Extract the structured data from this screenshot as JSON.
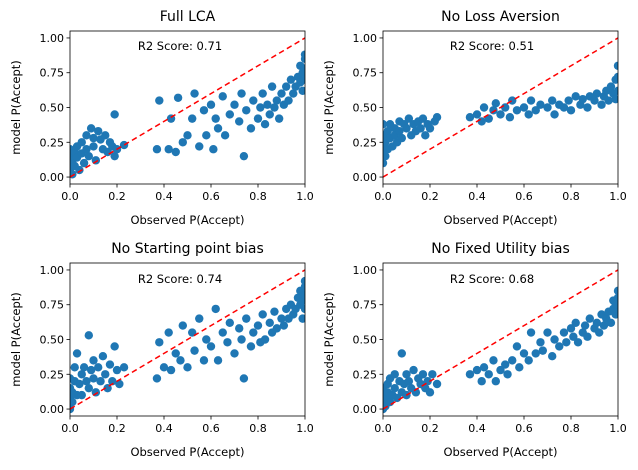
{
  "colors": {
    "points": "#1f77b4",
    "diagonal": "#ff0000",
    "axes": "#000000",
    "background": "#ffffff"
  },
  "chart_data": [
    {
      "type": "scatter",
      "title": "Full LCA",
      "annotation": "R2 Score: 0.71",
      "xlabel": "Observed P(Accept)",
      "ylabel": "model P(Accept)",
      "xlim": [
        0.0,
        1.0
      ],
      "ylim": [
        -0.05,
        1.05
      ],
      "xticks": [
        "0.0",
        "0.2",
        "0.4",
        "0.6",
        "0.8",
        "1.0"
      ],
      "yticks": [
        "0.00",
        "0.25",
        "0.50",
        "0.75",
        "1.00"
      ],
      "reference_line": {
        "style": "dashed",
        "color": "#ff0000",
        "from": [
          0,
          0
        ],
        "to": [
          1,
          1
        ]
      },
      "points": [
        [
          0.0,
          0.05
        ],
        [
          0.0,
          0.1
        ],
        [
          0.0,
          0.15
        ],
        [
          0.0,
          0.2
        ],
        [
          0.01,
          0.02
        ],
        [
          0.01,
          0.12
        ],
        [
          0.02,
          0.18
        ],
        [
          0.02,
          0.08
        ],
        [
          0.03,
          0.22
        ],
        [
          0.03,
          0.14
        ],
        [
          0.04,
          0.05
        ],
        [
          0.05,
          0.25
        ],
        [
          0.05,
          0.17
        ],
        [
          0.06,
          0.1
        ],
        [
          0.07,
          0.3
        ],
        [
          0.07,
          0.2
        ],
        [
          0.08,
          0.15
        ],
        [
          0.09,
          0.35
        ],
        [
          0.1,
          0.28
        ],
        [
          0.1,
          0.22
        ],
        [
          0.11,
          0.12
        ],
        [
          0.12,
          0.33
        ],
        [
          0.13,
          0.27
        ],
        [
          0.14,
          0.2
        ],
        [
          0.15,
          0.3
        ],
        [
          0.16,
          0.18
        ],
        [
          0.17,
          0.25
        ],
        [
          0.18,
          0.22
        ],
        [
          0.19,
          0.15
        ],
        [
          0.2,
          0.2
        ],
        [
          0.19,
          0.45
        ],
        [
          0.23,
          0.23
        ],
        [
          0.37,
          0.2
        ],
        [
          0.38,
          0.55
        ],
        [
          0.42,
          0.2
        ],
        [
          0.43,
          0.42
        ],
        [
          0.45,
          0.18
        ],
        [
          0.46,
          0.57
        ],
        [
          0.48,
          0.25
        ],
        [
          0.5,
          0.3
        ],
        [
          0.52,
          0.42
        ],
        [
          0.53,
          0.6
        ],
        [
          0.55,
          0.22
        ],
        [
          0.57,
          0.48
        ],
        [
          0.58,
          0.3
        ],
        [
          0.6,
          0.52
        ],
        [
          0.61,
          0.2
        ],
        [
          0.62,
          0.42
        ],
        [
          0.63,
          0.35
        ],
        [
          0.65,
          0.58
        ],
        [
          0.66,
          0.3
        ],
        [
          0.68,
          0.45
        ],
        [
          0.7,
          0.52
        ],
        [
          0.72,
          0.4
        ],
        [
          0.73,
          0.6
        ],
        [
          0.74,
          0.15
        ],
        [
          0.75,
          0.48
        ],
        [
          0.77,
          0.35
        ],
        [
          0.78,
          0.55
        ],
        [
          0.8,
          0.42
        ],
        [
          0.81,
          0.5
        ],
        [
          0.82,
          0.6
        ],
        [
          0.83,
          0.38
        ],
        [
          0.84,
          0.52
        ],
        [
          0.85,
          0.45
        ],
        [
          0.86,
          0.65
        ],
        [
          0.87,
          0.5
        ],
        [
          0.88,
          0.55
        ],
        [
          0.89,
          0.42
        ],
        [
          0.9,
          0.6
        ],
        [
          0.91,
          0.52
        ],
        [
          0.92,
          0.65
        ],
        [
          0.93,
          0.55
        ],
        [
          0.94,
          0.7
        ],
        [
          0.95,
          0.6
        ],
        [
          0.96,
          0.65
        ],
        [
          0.97,
          0.72
        ],
        [
          0.98,
          0.68
        ],
        [
          0.98,
          0.8
        ],
        [
          0.99,
          0.75
        ],
        [
          1.0,
          0.7
        ],
        [
          1.0,
          0.78
        ],
        [
          1.0,
          0.85
        ],
        [
          1.0,
          0.88
        ],
        [
          0.99,
          0.62
        ]
      ]
    },
    {
      "type": "scatter",
      "title": "No Loss Aversion",
      "annotation": "R2 Score: 0.51",
      "xlabel": "Observed P(Accept)",
      "ylabel": "model P(Accept)",
      "xlim": [
        0.0,
        1.0
      ],
      "ylim": [
        -0.05,
        1.05
      ],
      "xticks": [
        "0.0",
        "0.2",
        "0.4",
        "0.6",
        "0.8",
        "1.0"
      ],
      "yticks": [
        "0.00",
        "0.25",
        "0.50",
        "0.75",
        "1.00"
      ],
      "reference_line": {
        "style": "dashed",
        "color": "#ff0000",
        "from": [
          0,
          0
        ],
        "to": [
          1,
          1
        ]
      },
      "points": [
        [
          0.0,
          0.1
        ],
        [
          0.0,
          0.2
        ],
        [
          0.0,
          0.3
        ],
        [
          0.0,
          0.38
        ],
        [
          0.01,
          0.15
        ],
        [
          0.01,
          0.25
        ],
        [
          0.02,
          0.33
        ],
        [
          0.02,
          0.2
        ],
        [
          0.03,
          0.28
        ],
        [
          0.03,
          0.38
        ],
        [
          0.04,
          0.22
        ],
        [
          0.05,
          0.35
        ],
        [
          0.05,
          0.3
        ],
        [
          0.06,
          0.25
        ],
        [
          0.07,
          0.4
        ],
        [
          0.07,
          0.33
        ],
        [
          0.08,
          0.28
        ],
        [
          0.09,
          0.38
        ],
        [
          0.1,
          0.35
        ],
        [
          0.11,
          0.42
        ],
        [
          0.12,
          0.3
        ],
        [
          0.13,
          0.38
        ],
        [
          0.14,
          0.33
        ],
        [
          0.15,
          0.4
        ],
        [
          0.16,
          0.35
        ],
        [
          0.17,
          0.42
        ],
        [
          0.18,
          0.3
        ],
        [
          0.19,
          0.38
        ],
        [
          0.2,
          0.35
        ],
        [
          0.22,
          0.4
        ],
        [
          0.23,
          0.43
        ],
        [
          0.37,
          0.43
        ],
        [
          0.4,
          0.45
        ],
        [
          0.42,
          0.4
        ],
        [
          0.43,
          0.5
        ],
        [
          0.45,
          0.42
        ],
        [
          0.47,
          0.48
        ],
        [
          0.48,
          0.53
        ],
        [
          0.5,
          0.45
        ],
        [
          0.52,
          0.5
        ],
        [
          0.54,
          0.43
        ],
        [
          0.55,
          0.55
        ],
        [
          0.57,
          0.48
        ],
        [
          0.6,
          0.5
        ],
        [
          0.62,
          0.45
        ],
        [
          0.63,
          0.55
        ],
        [
          0.65,
          0.48
        ],
        [
          0.67,
          0.52
        ],
        [
          0.7,
          0.5
        ],
        [
          0.72,
          0.55
        ],
        [
          0.73,
          0.45
        ],
        [
          0.75,
          0.52
        ],
        [
          0.77,
          0.5
        ],
        [
          0.79,
          0.55
        ],
        [
          0.8,
          0.48
        ],
        [
          0.82,
          0.58
        ],
        [
          0.84,
          0.52
        ],
        [
          0.85,
          0.56
        ],
        [
          0.87,
          0.5
        ],
        [
          0.88,
          0.58
        ],
        [
          0.9,
          0.55
        ],
        [
          0.91,
          0.6
        ],
        [
          0.93,
          0.52
        ],
        [
          0.94,
          0.58
        ],
        [
          0.95,
          0.62
        ],
        [
          0.96,
          0.55
        ],
        [
          0.97,
          0.65
        ],
        [
          0.98,
          0.6
        ],
        [
          0.99,
          0.7
        ],
        [
          1.0,
          0.62
        ],
        [
          1.0,
          0.72
        ],
        [
          1.0,
          0.8
        ],
        [
          0.99,
          0.56
        ]
      ]
    },
    {
      "type": "scatter",
      "title": "No Starting point bias",
      "annotation": "R2 Score: 0.74",
      "xlabel": "Observed P(Accept)",
      "ylabel": "model P(Accept)",
      "xlim": [
        0.0,
        1.0
      ],
      "ylim": [
        -0.05,
        1.05
      ],
      "xticks": [
        "0.0",
        "0.2",
        "0.4",
        "0.6",
        "0.8",
        "1.0"
      ],
      "yticks": [
        "0.00",
        "0.25",
        "0.50",
        "0.75",
        "1.00"
      ],
      "reference_line": {
        "style": "dashed",
        "color": "#ff0000",
        "from": [
          0,
          0
        ],
        "to": [
          1,
          1
        ]
      },
      "points": [
        [
          0.0,
          0.0
        ],
        [
          0.0,
          0.08
        ],
        [
          0.0,
          0.15
        ],
        [
          0.0,
          0.22
        ],
        [
          0.01,
          0.05
        ],
        [
          0.01,
          0.12
        ],
        [
          0.02,
          0.2
        ],
        [
          0.02,
          0.3
        ],
        [
          0.03,
          0.1
        ],
        [
          0.03,
          0.4
        ],
        [
          0.04,
          0.18
        ],
        [
          0.05,
          0.25
        ],
        [
          0.05,
          0.1
        ],
        [
          0.06,
          0.3
        ],
        [
          0.07,
          0.2
        ],
        [
          0.08,
          0.53
        ],
        [
          0.08,
          0.15
        ],
        [
          0.09,
          0.28
        ],
        [
          0.1,
          0.22
        ],
        [
          0.1,
          0.35
        ],
        [
          0.11,
          0.12
        ],
        [
          0.12,
          0.3
        ],
        [
          0.13,
          0.2
        ],
        [
          0.14,
          0.38
        ],
        [
          0.15,
          0.25
        ],
        [
          0.16,
          0.15
        ],
        [
          0.17,
          0.32
        ],
        [
          0.18,
          0.2
        ],
        [
          0.19,
          0.45
        ],
        [
          0.2,
          0.28
        ],
        [
          0.21,
          0.18
        ],
        [
          0.23,
          0.3
        ],
        [
          0.37,
          0.22
        ],
        [
          0.38,
          0.48
        ],
        [
          0.4,
          0.3
        ],
        [
          0.42,
          0.55
        ],
        [
          0.43,
          0.28
        ],
        [
          0.45,
          0.4
        ],
        [
          0.47,
          0.35
        ],
        [
          0.48,
          0.6
        ],
        [
          0.5,
          0.3
        ],
        [
          0.52,
          0.55
        ],
        [
          0.53,
          0.42
        ],
        [
          0.55,
          0.65
        ],
        [
          0.57,
          0.35
        ],
        [
          0.58,
          0.5
        ],
        [
          0.6,
          0.45
        ],
        [
          0.62,
          0.72
        ],
        [
          0.63,
          0.35
        ],
        [
          0.65,
          0.55
        ],
        [
          0.67,
          0.48
        ],
        [
          0.68,
          0.62
        ],
        [
          0.7,
          0.4
        ],
        [
          0.72,
          0.58
        ],
        [
          0.73,
          0.5
        ],
        [
          0.74,
          0.22
        ],
        [
          0.75,
          0.65
        ],
        [
          0.77,
          0.45
        ],
        [
          0.78,
          0.55
        ],
        [
          0.8,
          0.6
        ],
        [
          0.81,
          0.48
        ],
        [
          0.82,
          0.68
        ],
        [
          0.83,
          0.5
        ],
        [
          0.85,
          0.62
        ],
        [
          0.86,
          0.55
        ],
        [
          0.87,
          0.7
        ],
        [
          0.88,
          0.58
        ],
        [
          0.9,
          0.65
        ],
        [
          0.91,
          0.6
        ],
        [
          0.92,
          0.72
        ],
        [
          0.93,
          0.65
        ],
        [
          0.94,
          0.75
        ],
        [
          0.95,
          0.68
        ],
        [
          0.96,
          0.72
        ],
        [
          0.97,
          0.8
        ],
        [
          0.98,
          0.75
        ],
        [
          0.98,
          0.85
        ],
        [
          0.99,
          0.78
        ],
        [
          1.0,
          0.72
        ],
        [
          1.0,
          0.82
        ],
        [
          1.0,
          0.88
        ],
        [
          1.0,
          0.92
        ],
        [
          0.99,
          0.65
        ]
      ]
    },
    {
      "type": "scatter",
      "title": "No Fixed Utility bias",
      "annotation": "R2 Score: 0.68",
      "xlabel": "Observed P(Accept)",
      "ylabel": "model P(Accept)",
      "xlim": [
        0.0,
        1.0
      ],
      "ylim": [
        -0.05,
        1.05
      ],
      "xticks": [
        "0.0",
        "0.2",
        "0.4",
        "0.6",
        "0.8",
        "1.0"
      ],
      "yticks": [
        "0.00",
        "0.25",
        "0.50",
        "0.75",
        "1.00"
      ],
      "reference_line": {
        "style": "dashed",
        "color": "#ff0000",
        "from": [
          0,
          0
        ],
        "to": [
          1,
          1
        ]
      },
      "points": [
        [
          0.0,
          0.0
        ],
        [
          0.0,
          0.05
        ],
        [
          0.0,
          0.1
        ],
        [
          0.0,
          0.15
        ],
        [
          0.01,
          0.02
        ],
        [
          0.01,
          0.08
        ],
        [
          0.02,
          0.12
        ],
        [
          0.02,
          0.18
        ],
        [
          0.03,
          0.05
        ],
        [
          0.03,
          0.22
        ],
        [
          0.04,
          0.1
        ],
        [
          0.05,
          0.15
        ],
        [
          0.05,
          0.25
        ],
        [
          0.06,
          0.08
        ],
        [
          0.07,
          0.2
        ],
        [
          0.08,
          0.4
        ],
        [
          0.08,
          0.12
        ],
        [
          0.09,
          0.18
        ],
        [
          0.1,
          0.25
        ],
        [
          0.1,
          0.1
        ],
        [
          0.11,
          0.2
        ],
        [
          0.12,
          0.15
        ],
        [
          0.13,
          0.28
        ],
        [
          0.14,
          0.12
        ],
        [
          0.15,
          0.22
        ],
        [
          0.16,
          0.18
        ],
        [
          0.17,
          0.25
        ],
        [
          0.18,
          0.15
        ],
        [
          0.19,
          0.2
        ],
        [
          0.2,
          0.12
        ],
        [
          0.21,
          0.25
        ],
        [
          0.23,
          0.18
        ],
        [
          0.37,
          0.25
        ],
        [
          0.4,
          0.28
        ],
        [
          0.42,
          0.2
        ],
        [
          0.43,
          0.3
        ],
        [
          0.45,
          0.25
        ],
        [
          0.47,
          0.35
        ],
        [
          0.48,
          0.2
        ],
        [
          0.5,
          0.28
        ],
        [
          0.52,
          0.32
        ],
        [
          0.53,
          0.25
        ],
        [
          0.55,
          0.35
        ],
        [
          0.57,
          0.45
        ],
        [
          0.58,
          0.3
        ],
        [
          0.6,
          0.4
        ],
        [
          0.62,
          0.35
        ],
        [
          0.63,
          0.55
        ],
        [
          0.65,
          0.4
        ],
        [
          0.67,
          0.48
        ],
        [
          0.68,
          0.42
        ],
        [
          0.7,
          0.55
        ],
        [
          0.72,
          0.38
        ],
        [
          0.73,
          0.5
        ],
        [
          0.75,
          0.45
        ],
        [
          0.77,
          0.55
        ],
        [
          0.78,
          0.48
        ],
        [
          0.8,
          0.58
        ],
        [
          0.81,
          0.52
        ],
        [
          0.82,
          0.62
        ],
        [
          0.83,
          0.48
        ],
        [
          0.85,
          0.55
        ],
        [
          0.86,
          0.6
        ],
        [
          0.87,
          0.52
        ],
        [
          0.88,
          0.65
        ],
        [
          0.9,
          0.58
        ],
        [
          0.91,
          0.62
        ],
        [
          0.92,
          0.55
        ],
        [
          0.93,
          0.68
        ],
        [
          0.94,
          0.6
        ],
        [
          0.95,
          0.65
        ],
        [
          0.96,
          0.7
        ],
        [
          0.97,
          0.62
        ],
        [
          0.98,
          0.72
        ],
        [
          0.98,
          0.78
        ],
        [
          0.99,
          0.68
        ],
        [
          1.0,
          0.72
        ],
        [
          1.0,
          0.8
        ],
        [
          1.0,
          0.85
        ],
        [
          0.99,
          0.75
        ]
      ]
    }
  ]
}
